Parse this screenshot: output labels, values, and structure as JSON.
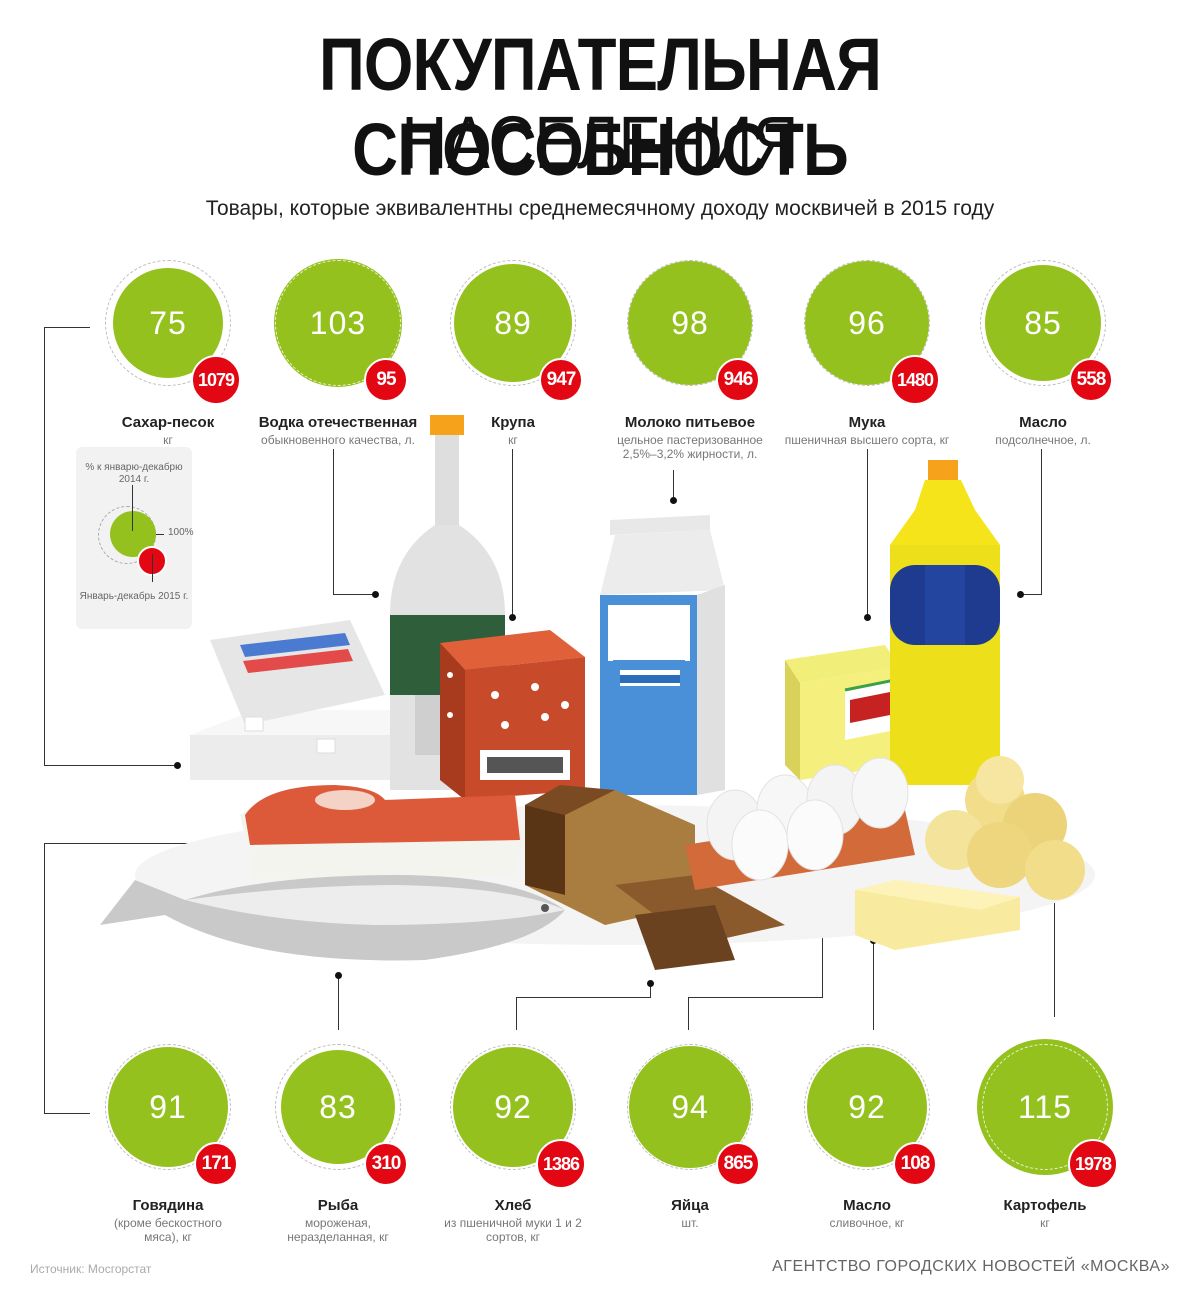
{
  "header": {
    "title_line1": "ПОКУПАТЕЛЬНАЯ СПОСОБНОСТЬ",
    "title_line2": "НАСЕЛЕНИЯ",
    "subtitle": "Товары, которые эквивалентны среднемесячному доходу москвичей в 2015 году"
  },
  "legend": {
    "top_label": "% к январю-декабрю 2014 г.",
    "percent_label": "100%",
    "bottom_label": "Январь-декабрь 2015 г."
  },
  "colors": {
    "green": "#95c11f",
    "red": "#e30613"
  },
  "top_items": [
    {
      "pct": "75",
      "amount": "1079",
      "name": "Сахар-песок",
      "desc": "кг"
    },
    {
      "pct": "103",
      "amount": "95",
      "name": "Водка отечественная",
      "desc": "обыкновенного качества, л."
    },
    {
      "pct": "89",
      "amount": "947",
      "name": "Крупа",
      "desc": "кг"
    },
    {
      "pct": "98",
      "amount": "946",
      "name": "Молоко питьевое",
      "desc": "цельное пастеризованное 2,5%–3,2% жирности, л."
    },
    {
      "pct": "96",
      "amount": "1480",
      "name": "Мука",
      "desc": "пшеничная высшего сорта, кг"
    },
    {
      "pct": "85",
      "amount": "558",
      "name": "Масло",
      "desc": "подсолнечное, л."
    }
  ],
  "bottom_items": [
    {
      "pct": "91",
      "amount": "171",
      "name": "Говядина",
      "desc": "(кроме бескостного мяса), кг"
    },
    {
      "pct": "83",
      "amount": "310",
      "name": "Рыба",
      "desc": "мороженая, неразделанная, кг"
    },
    {
      "pct": "92",
      "amount": "1386",
      "name": "Хлеб",
      "desc": "из пшеничной муки 1 и 2 сортов, кг"
    },
    {
      "pct": "94",
      "amount": "865",
      "name": "Яйца",
      "desc": "шт."
    },
    {
      "pct": "92",
      "amount": "108",
      "name": "Масло",
      "desc": "сливочное, кг"
    },
    {
      "pct": "115",
      "amount": "1978",
      "name": "Картофель",
      "desc": "кг"
    }
  ],
  "footer": {
    "source": "Источник: Мосгорстат",
    "agency": "АГЕНТСТВО ГОРОДСКИХ НОВОСТЕЙ «МОСКВА»"
  }
}
